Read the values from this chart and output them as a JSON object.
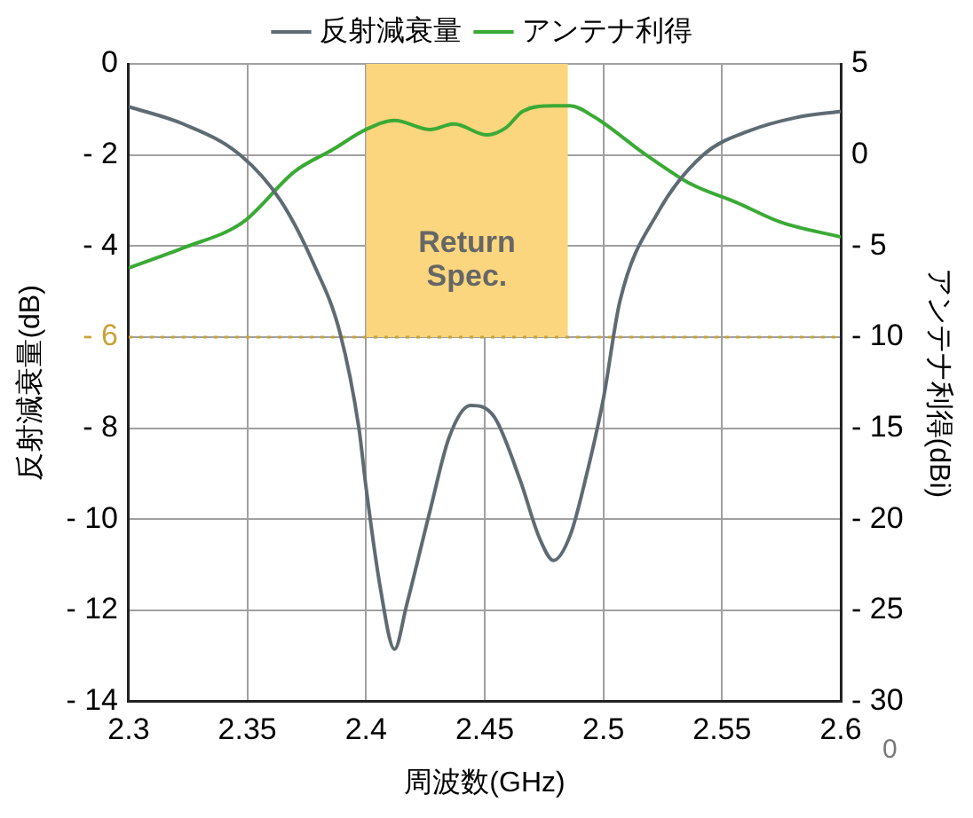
{
  "chart_data": {
    "type": "line",
    "xlabel": "周波数(GHz)",
    "ylabel": "反射減衰量(dB)",
    "y2label": "アンテナ利得(dBi)",
    "xlim": [
      2.3,
      2.6
    ],
    "xticks": [
      2.3,
      2.35,
      2.4,
      2.45,
      2.5,
      2.55,
      2.6
    ],
    "ylim": [
      -14,
      0
    ],
    "yticks": [
      0,
      {
        "value": -2,
        "label": "- 2"
      },
      {
        "value": -4,
        "label": "- 4"
      },
      {
        "value": -6,
        "label": "- 6"
      },
      {
        "value": -8,
        "label": "- 8"
      },
      {
        "value": -10,
        "label": "- 10"
      },
      {
        "value": -12,
        "label": "- 12"
      },
      {
        "value": -14,
        "label": "- 14"
      }
    ],
    "y2lim": [
      -30,
      5
    ],
    "y2ticks": [
      5,
      0,
      {
        "value": -5,
        "label": "- 5"
      },
      {
        "value": -10,
        "label": "- 10"
      },
      {
        "value": -15,
        "label": "- 15"
      },
      {
        "value": -20,
        "label": "- 20"
      },
      {
        "value": -25,
        "label": "- 25"
      },
      {
        "value": -30,
        "label": "- 30"
      }
    ],
    "series": [
      {
        "name": "反射減衰量",
        "color": "#5f6b72",
        "x": [
          2.3,
          2.323,
          2.347,
          2.364,
          2.378,
          2.389,
          2.397,
          2.4,
          2.406,
          2.412,
          2.417,
          2.427,
          2.435,
          2.444,
          2.454,
          2.465,
          2.473,
          2.479,
          2.486,
          2.493,
          2.5,
          2.507,
          2.523,
          2.542,
          2.562,
          2.581,
          2.6
        ],
        "values": [
          -0.94,
          -1.32,
          -2.0,
          -3.0,
          -4.4,
          -5.9,
          -8.0,
          -9.3,
          -11.5,
          -12.85,
          -11.9,
          -9.8,
          -8.2,
          -7.5,
          -7.75,
          -9.15,
          -10.4,
          -10.9,
          -10.35,
          -9.0,
          -7.35,
          -5.2,
          -3.26,
          -2.0,
          -1.46,
          -1.18,
          -1.04
        ]
      },
      {
        "name": "アンテナ利得",
        "color": "#3aaa35",
        "axis": "y2",
        "x": [
          2.3,
          2.323,
          2.348,
          2.37,
          2.386,
          2.4,
          2.412,
          2.427,
          2.437,
          2.451,
          2.459,
          2.466,
          2.479,
          2.486,
          2.496,
          2.518,
          2.537,
          2.556,
          2.575,
          2.6
        ],
        "values": [
          -6.2,
          -5.1,
          -3.7,
          -0.9,
          0.3,
          1.4,
          1.9,
          1.4,
          1.7,
          1.1,
          1.5,
          2.4,
          2.7,
          2.7,
          2.1,
          0.0,
          -1.6,
          -2.6,
          -3.7,
          -4.5
        ]
      }
    ],
    "bands": [
      {
        "axis": "x",
        "from": 2.4,
        "to": 2.485,
        "label": "Return\nSpec.",
        "color": "#fbd67e"
      }
    ],
    "ref_lines": [
      {
        "axis": "y",
        "value": -6,
        "color": "#c9a235",
        "line_style": "dotted"
      }
    ],
    "annotations": [
      "0"
    ],
    "grid": true,
    "legend": "top",
    "marker": "none",
    "line_style": "solid"
  }
}
